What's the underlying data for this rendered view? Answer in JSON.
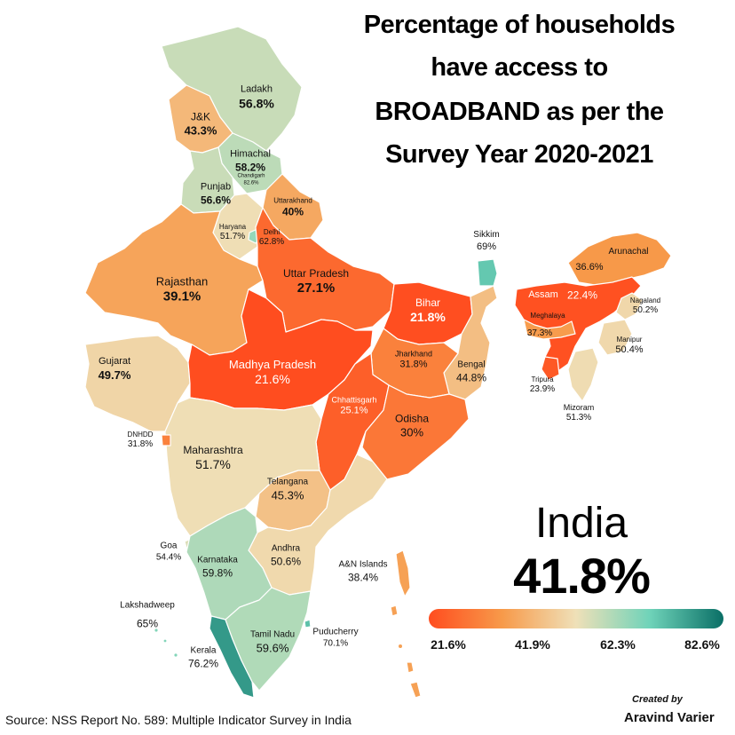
{
  "title": {
    "line1": "Percentage of households",
    "line2": "have access to",
    "line3": "BROADBAND as per the",
    "line4": "Survey Year 2020-2021"
  },
  "national": {
    "name": "India",
    "value": "41.8%"
  },
  "legend": {
    "ticks": [
      "21.6%",
      "41.9%",
      "62.3%",
      "82.6%"
    ],
    "colors": [
      "#ff4d1f",
      "#f79a4a",
      "#efe0b8",
      "#6fd3b9",
      "#0a6f66"
    ]
  },
  "regions": [
    {
      "id": "ladakh",
      "name": "Ladakh",
      "value": "56.8%",
      "pct": 56.8
    },
    {
      "id": "jk",
      "name": "J&K",
      "value": "43.3%",
      "pct": 43.3
    },
    {
      "id": "himachal",
      "name": "Himachal",
      "value": "58.2%",
      "pct": 58.2
    },
    {
      "id": "chandigarh",
      "name": "Chandigarh",
      "value": "82.6%",
      "pct": 82.6
    },
    {
      "id": "punjab",
      "name": "Punjab",
      "value": "56.6%",
      "pct": 56.6
    },
    {
      "id": "uttarakhand",
      "name": "Uttarakhand",
      "value": "40%",
      "pct": 40
    },
    {
      "id": "haryana",
      "name": "Haryana",
      "value": "51.7%",
      "pct": 51.7
    },
    {
      "id": "delhi",
      "name": "Delhi",
      "value": "62.8%",
      "pct": 62.8
    },
    {
      "id": "rajasthan",
      "name": "Rajasthan",
      "value": "39.1%",
      "pct": 39.1
    },
    {
      "id": "up",
      "name": "Uttar Pradesh",
      "value": "27.1%",
      "pct": 27.1
    },
    {
      "id": "bihar",
      "name": "Bihar",
      "value": "21.8%",
      "pct": 21.8
    },
    {
      "id": "sikkim",
      "name": "Sikkim",
      "value": "69%",
      "pct": 69
    },
    {
      "id": "arunachal",
      "name": "Arunachal",
      "value": "36.6%",
      "pct": 36.6
    },
    {
      "id": "assam",
      "name": "Assam",
      "value": "22.4%",
      "pct": 22.4
    },
    {
      "id": "nagaland",
      "name": "Nagaland",
      "value": "50.2%",
      "pct": 50.2
    },
    {
      "id": "meghalaya",
      "name": "Meghalaya",
      "value": "37.3%",
      "pct": 37.3
    },
    {
      "id": "manipur",
      "name": "Manipur",
      "value": "50.4%",
      "pct": 50.4
    },
    {
      "id": "tripura",
      "name": "Tripura",
      "value": "23.9%",
      "pct": 23.9
    },
    {
      "id": "mizoram",
      "name": "Mizoram",
      "value": "51.3%",
      "pct": 51.3
    },
    {
      "id": "gujarat",
      "name": "Gujarat",
      "value": "49.7%",
      "pct": 49.7
    },
    {
      "id": "mp",
      "name": "Madhya Pradesh",
      "value": "21.6%",
      "pct": 21.6
    },
    {
      "id": "jharkhand",
      "name": "Jharkhand",
      "value": "31.8%",
      "pct": 31.8
    },
    {
      "id": "bengal",
      "name": "Bengal",
      "value": "44.8%",
      "pct": 44.8
    },
    {
      "id": "chhattisgarh",
      "name": "Chhattisgarh",
      "value": "25.1%",
      "pct": 25.1
    },
    {
      "id": "odisha",
      "name": "Odisha",
      "value": "30%",
      "pct": 30
    },
    {
      "id": "dnhdd",
      "name": "DNHDD",
      "value": "31.8%",
      "pct": 31.8
    },
    {
      "id": "maharashtra",
      "name": "Maharashtra",
      "value": "51.7%",
      "pct": 51.7
    },
    {
      "id": "telangana",
      "name": "Telangana",
      "value": "45.3%",
      "pct": 45.3
    },
    {
      "id": "goa",
      "name": "Goa",
      "value": "54.4%",
      "pct": 54.4
    },
    {
      "id": "karnataka",
      "name": "Karnataka",
      "value": "59.8%",
      "pct": 59.8
    },
    {
      "id": "andhra",
      "name": "Andhra",
      "value": "50.6%",
      "pct": 50.6
    },
    {
      "id": "an_islands",
      "name": "A&N Islands",
      "value": "38.4%",
      "pct": 38.4
    },
    {
      "id": "lakshadweep",
      "name": "Lakshadweep",
      "value": "65%",
      "pct": 65
    },
    {
      "id": "kerala",
      "name": "Kerala",
      "value": "76.2%",
      "pct": 76.2
    },
    {
      "id": "tamilnadu",
      "name": "Tamil Nadu",
      "value": "59.6%",
      "pct": 59.6
    },
    {
      "id": "puducherry",
      "name": "Puducherry",
      "value": "70.1%",
      "pct": 70.1
    }
  ],
  "source": "Source: NSS Report No. 589: Multiple Indicator Survey in India",
  "credit": {
    "line1": "Created by",
    "line2": "Aravind Varier"
  }
}
